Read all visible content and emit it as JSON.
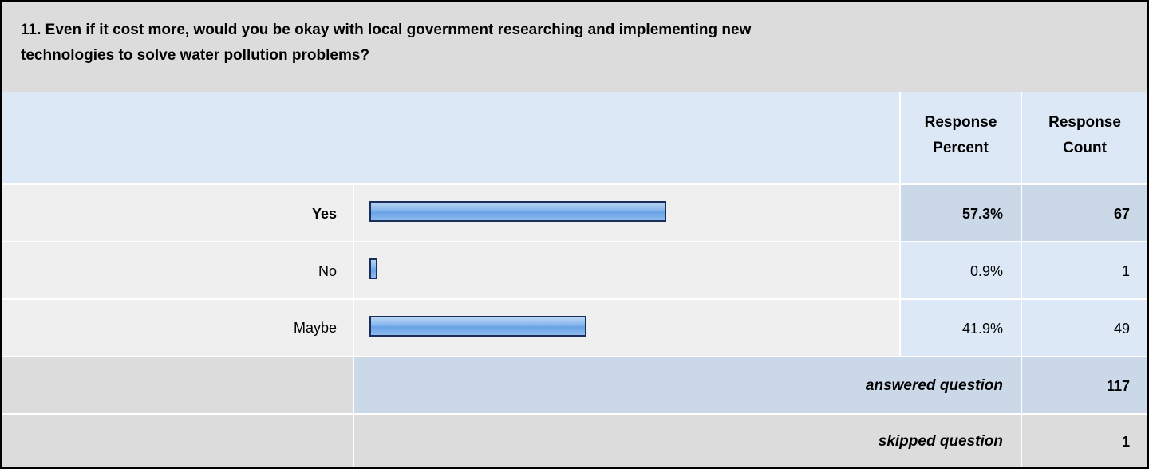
{
  "question": {
    "line1": "11. Even if it cost more, would you be okay with local government researching and implementing new",
    "line2": "technologies to solve water pollution problems?"
  },
  "columns": {
    "percent_line1": "Response",
    "percent_line2": "Percent",
    "count_line1": "Response",
    "count_line2": "Count"
  },
  "chart_data": {
    "type": "bar",
    "categories": [
      "Yes",
      "No",
      "Maybe"
    ],
    "values": [
      57.3,
      0.9,
      41.9
    ],
    "percent_labels": [
      "57.3%",
      "0.9%",
      "41.9%"
    ],
    "counts": [
      "67",
      "1",
      "49"
    ],
    "xlim": [
      0,
      100
    ]
  },
  "summary": {
    "answered_label": "answered question",
    "answered_value": "117",
    "skipped_label": "skipped question",
    "skipped_value": "1"
  },
  "colors": {
    "header_bg": "#dcdcdc",
    "column_header_bg": "#dde8f7",
    "row_grey": "#efefef",
    "highlight_cell": "#cbd8e8",
    "light_cell": "#dde8f7",
    "bar_fill": "#8ab8ec",
    "bar_border": "#1b2e5a"
  }
}
